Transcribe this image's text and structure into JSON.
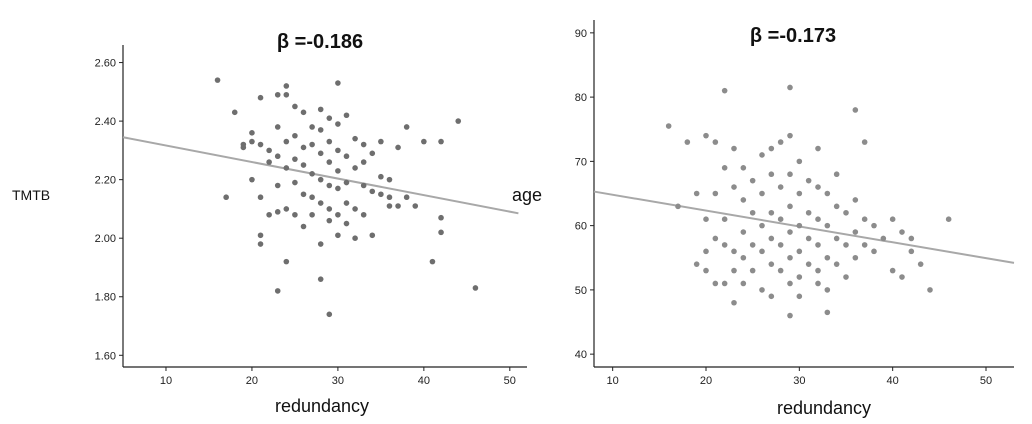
{
  "chart_data": [
    {
      "type": "scatter",
      "title": "β =-0.186",
      "xlabel": "redundancy",
      "ylabel": "TMTB",
      "xlim": [
        5,
        52
      ],
      "ylim": [
        1.56,
        2.66
      ],
      "xticks": [
        "10",
        "20",
        "30",
        "40",
        "50"
      ],
      "yticks": [
        "1.60",
        "1.80",
        "2.00",
        "2.20",
        "2.40",
        "2.60"
      ],
      "grid": false,
      "point_color": "#6e6e6e",
      "line_color": "#a8a8a8",
      "fit_line": {
        "x": [
          5,
          51
        ],
        "y": [
          2.345,
          2.085
        ]
      },
      "points": [
        [
          16,
          2.54
        ],
        [
          18,
          2.43
        ],
        [
          17,
          2.14
        ],
        [
          19,
          2.31
        ],
        [
          19,
          2.32
        ],
        [
          20,
          2.33
        ],
        [
          20,
          2.2
        ],
        [
          20,
          2.36
        ],
        [
          21,
          2.48
        ],
        [
          21,
          2.32
        ],
        [
          21,
          2.14
        ],
        [
          21,
          2.01
        ],
        [
          21,
          1.98
        ],
        [
          22,
          2.3
        ],
        [
          22,
          2.26
        ],
        [
          22,
          2.08
        ],
        [
          23,
          2.49
        ],
        [
          23,
          2.38
        ],
        [
          23,
          2.28
        ],
        [
          23,
          2.18
        ],
        [
          23,
          2.09
        ],
        [
          23,
          1.82
        ],
        [
          24,
          2.52
        ],
        [
          24,
          2.49
        ],
        [
          24,
          2.33
        ],
        [
          24,
          2.24
        ],
        [
          24,
          2.1
        ],
        [
          24,
          1.92
        ],
        [
          25,
          2.45
        ],
        [
          25,
          2.35
        ],
        [
          25,
          2.27
        ],
        [
          25,
          2.19
        ],
        [
          25,
          2.08
        ],
        [
          26,
          2.43
        ],
        [
          26,
          2.31
        ],
        [
          26,
          2.25
        ],
        [
          26,
          2.15
        ],
        [
          26,
          2.04
        ],
        [
          27,
          2.38
        ],
        [
          27,
          2.32
        ],
        [
          27,
          2.22
        ],
        [
          27,
          2.14
        ],
        [
          27,
          2.08
        ],
        [
          28,
          2.44
        ],
        [
          28,
          2.37
        ],
        [
          28,
          2.29
        ],
        [
          28,
          2.2
        ],
        [
          28,
          2.12
        ],
        [
          28,
          1.98
        ],
        [
          28,
          1.86
        ],
        [
          29,
          2.41
        ],
        [
          29,
          2.33
        ],
        [
          29,
          2.26
        ],
        [
          29,
          2.18
        ],
        [
          29,
          2.1
        ],
        [
          29,
          2.06
        ],
        [
          29,
          1.74
        ],
        [
          30,
          2.53
        ],
        [
          30,
          2.39
        ],
        [
          30,
          2.3
        ],
        [
          30,
          2.23
        ],
        [
          30,
          2.17
        ],
        [
          30,
          2.08
        ],
        [
          30,
          2.01
        ],
        [
          31,
          2.42
        ],
        [
          31,
          2.28
        ],
        [
          31,
          2.19
        ],
        [
          31,
          2.12
        ],
        [
          31,
          2.05
        ],
        [
          32,
          2.34
        ],
        [
          32,
          2.24
        ],
        [
          32,
          2.1
        ],
        [
          32,
          2.0
        ],
        [
          33,
          2.32
        ],
        [
          33,
          2.26
        ],
        [
          33,
          2.18
        ],
        [
          33,
          2.08
        ],
        [
          34,
          2.29
        ],
        [
          34,
          2.16
        ],
        [
          34,
          2.01
        ],
        [
          35,
          2.33
        ],
        [
          35,
          2.21
        ],
        [
          35,
          2.15
        ],
        [
          36,
          2.2
        ],
        [
          36,
          2.14
        ],
        [
          36,
          2.11
        ],
        [
          37,
          2.31
        ],
        [
          37,
          2.11
        ],
        [
          38,
          2.38
        ],
        [
          38,
          2.14
        ],
        [
          39,
          2.11
        ],
        [
          40,
          2.33
        ],
        [
          41,
          1.92
        ],
        [
          42,
          2.33
        ],
        [
          42,
          2.07
        ],
        [
          42,
          2.02
        ],
        [
          44,
          2.4
        ],
        [
          46,
          1.83
        ]
      ]
    },
    {
      "type": "scatter",
      "title": "β =-0.173",
      "xlabel": "redundancy",
      "ylabel": "age",
      "xlim": [
        8,
        53
      ],
      "ylim": [
        38,
        92
      ],
      "xticks": [
        "10",
        "20",
        "30",
        "40",
        "50"
      ],
      "yticks": [
        "40",
        "50",
        "60",
        "70",
        "80",
        "90"
      ],
      "grid": false,
      "point_color": "#8c8c8c",
      "line_color": "#a8a8a8",
      "fit_line": {
        "x": [
          8,
          53
        ],
        "y": [
          65.3,
          54.2
        ]
      },
      "points": [
        [
          16,
          75.5
        ],
        [
          17,
          63
        ],
        [
          18,
          73
        ],
        [
          19,
          65
        ],
        [
          19,
          54
        ],
        [
          20,
          74
        ],
        [
          20,
          61
        ],
        [
          20,
          56
        ],
        [
          20,
          53
        ],
        [
          21,
          73
        ],
        [
          21,
          65
        ],
        [
          21,
          58
        ],
        [
          21,
          51
        ],
        [
          22,
          81
        ],
        [
          22,
          69
        ],
        [
          22,
          61
        ],
        [
          22,
          57
        ],
        [
          22,
          51
        ],
        [
          23,
          72
        ],
        [
          23,
          66
        ],
        [
          23,
          56
        ],
        [
          23,
          53
        ],
        [
          23,
          48
        ],
        [
          24,
          69
        ],
        [
          24,
          64
        ],
        [
          24,
          59
        ],
        [
          24,
          55
        ],
        [
          24,
          51
        ],
        [
          25,
          67
        ],
        [
          25,
          62
        ],
        [
          25,
          57
        ],
        [
          25,
          53
        ],
        [
          26,
          71
        ],
        [
          26,
          65
        ],
        [
          26,
          60
        ],
        [
          26,
          56
        ],
        [
          26,
          50
        ],
        [
          27,
          72
        ],
        [
          27,
          68
        ],
        [
          27,
          62
        ],
        [
          27,
          58
        ],
        [
          27,
          54
        ],
        [
          27,
          49
        ],
        [
          28,
          73
        ],
        [
          28,
          66
        ],
        [
          28,
          61
        ],
        [
          28,
          57
        ],
        [
          28,
          53
        ],
        [
          29,
          81.5
        ],
        [
          29,
          74
        ],
        [
          29,
          68
        ],
        [
          29,
          63
        ],
        [
          29,
          59
        ],
        [
          29,
          55
        ],
        [
          29,
          51
        ],
        [
          29,
          46
        ],
        [
          30,
          70
        ],
        [
          30,
          65
        ],
        [
          30,
          60
        ],
        [
          30,
          56
        ],
        [
          30,
          52
        ],
        [
          30,
          49
        ],
        [
          31,
          67
        ],
        [
          31,
          62
        ],
        [
          31,
          58
        ],
        [
          31,
          54
        ],
        [
          32,
          72
        ],
        [
          32,
          66
        ],
        [
          32,
          61
        ],
        [
          32,
          57
        ],
        [
          32,
          53
        ],
        [
          32,
          51
        ],
        [
          33,
          65
        ],
        [
          33,
          60
        ],
        [
          33,
          55
        ],
        [
          33,
          50
        ],
        [
          33,
          46.5
        ],
        [
          34,
          68
        ],
        [
          34,
          63
        ],
        [
          34,
          58
        ],
        [
          34,
          54
        ],
        [
          35,
          62
        ],
        [
          35,
          57
        ],
        [
          35,
          52
        ],
        [
          36,
          78
        ],
        [
          36,
          64
        ],
        [
          36,
          59
        ],
        [
          36,
          55
        ],
        [
          37,
          73
        ],
        [
          37,
          61
        ],
        [
          37,
          57
        ],
        [
          38,
          60
        ],
        [
          38,
          56
        ],
        [
          39,
          58
        ],
        [
          40,
          61
        ],
        [
          40,
          53
        ],
        [
          41,
          59
        ],
        [
          41,
          52
        ],
        [
          42,
          58
        ],
        [
          42,
          56
        ],
        [
          43,
          54
        ],
        [
          44,
          50
        ],
        [
          46,
          61
        ]
      ]
    }
  ]
}
